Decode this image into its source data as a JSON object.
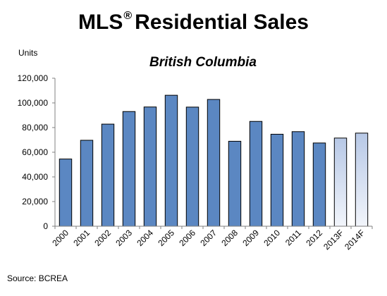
{
  "chart_data": {
    "type": "bar",
    "title_main": "MLS",
    "title_mark": "®",
    "title_rest": "Residential Sales",
    "subtitle": "British Columbia",
    "ylabel": "Units",
    "source": "Source: BCREA",
    "ylim": [
      0,
      120000
    ],
    "y_ticks": [
      "0",
      "20,000",
      "40,000",
      "60,000",
      "80,000",
      "100,000",
      "120,000"
    ],
    "grid": false,
    "legend": "none",
    "categories": [
      "2000",
      "2001",
      "2002",
      "2003",
      "2004",
      "2005",
      "2006",
      "2007",
      "2008",
      "2009",
      "2010",
      "2011",
      "2012",
      "2013F",
      "2014F"
    ],
    "values": [
      54500,
      69700,
      82800,
      93000,
      96700,
      106200,
      96600,
      102800,
      68900,
      85000,
      74600,
      76700,
      67500,
      71500,
      75500
    ],
    "forecast": [
      false,
      false,
      false,
      false,
      false,
      false,
      false,
      false,
      false,
      false,
      false,
      false,
      false,
      true,
      true
    ],
    "colors": {
      "actual": "#5b87c2",
      "forecast_top": "#b7c8e6",
      "forecast_bottom": "#f2f5fb",
      "bar_outline": "#000000"
    }
  }
}
